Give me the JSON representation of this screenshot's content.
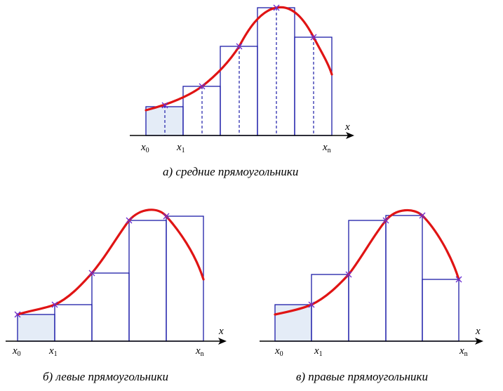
{
  "panel_a": {
    "caption": "а) средние прямоугольники",
    "axis_label": "x",
    "ticks": [
      {
        "main": "x",
        "sub": "0"
      },
      {
        "main": "x",
        "sub": "1"
      },
      {
        "main": "x",
        "sub": "n"
      }
    ]
  },
  "panel_b": {
    "caption": "б) левые прямоугольники",
    "axis_label": "x",
    "ticks": [
      {
        "main": "x",
        "sub": "0"
      },
      {
        "main": "x",
        "sub": "1"
      },
      {
        "main": "x",
        "sub": "n"
      }
    ]
  },
  "panel_c": {
    "caption": "в) правые прямоугольники",
    "axis_label": "x",
    "ticks": [
      {
        "main": "x",
        "sub": "0"
      },
      {
        "main": "x",
        "sub": "1"
      },
      {
        "main": "x",
        "sub": "n"
      }
    ]
  },
  "colors": {
    "curve": "#e01414",
    "rectangles": "#1c1ca8",
    "markers": "#6a2cd0",
    "shade": "#e4ecf7"
  }
}
